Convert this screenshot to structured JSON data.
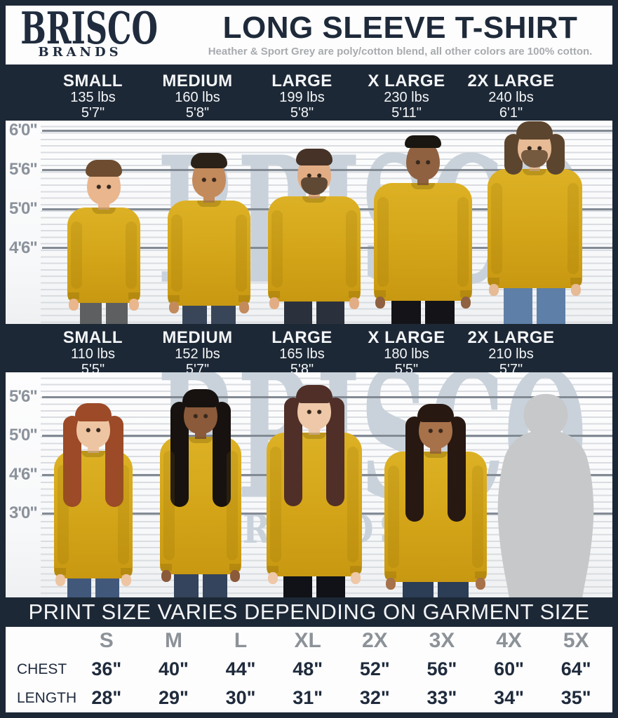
{
  "colors": {
    "navy": "#1d2836",
    "shirt_yellow": "#d3a417",
    "scale_grey": "#8b929b",
    "watermark_blue_grey": "#c9d2db",
    "table_header_grey": "#8c9298"
  },
  "header": {
    "brand_line1": "BRISCO",
    "brand_line2": "BRANDS",
    "title": "LONG SLEEVE T-SHIRT",
    "subtitle": "Heather & Sport Grey are poly/cotton blend, all other colors are 100% cotton."
  },
  "watermark": {
    "main": "BRISCO",
    "sub": "BRANDS"
  },
  "mens_row": {
    "sizes": [
      {
        "label": "SMALL",
        "weight": "135 lbs",
        "height": "5'7\""
      },
      {
        "label": "MEDIUM",
        "weight": "160 lbs",
        "height": "5'8\""
      },
      {
        "label": "LARGE",
        "weight": "199 lbs",
        "height": "5'8\""
      },
      {
        "label": "X LARGE",
        "weight": "230 lbs",
        "height": "5'11\""
      },
      {
        "label": "2X LARGE",
        "weight": "240 lbs",
        "height": "6'1\""
      }
    ],
    "scale_labels": [
      "6'0\"",
      "5'6\"",
      "5'0\"",
      "4'6\""
    ]
  },
  "womens_row": {
    "sizes": [
      {
        "label": "SMALL",
        "weight": "110 lbs",
        "height": "5'5\""
      },
      {
        "label": "MEDIUM",
        "weight": "152 lbs",
        "height": "5'7\""
      },
      {
        "label": "LARGE",
        "weight": "165 lbs",
        "height": "5'8\""
      },
      {
        "label": "X LARGE",
        "weight": "180 lbs",
        "height": "5'5\""
      },
      {
        "label": "2X LARGE",
        "weight": "210 lbs",
        "height": "5'7\""
      }
    ],
    "scale_labels": [
      "5'6\"",
      "5'0\"",
      "4'6\"",
      "3'0\""
    ]
  },
  "banner": {
    "text": "PRINT SIZE VARIES DEPENDING ON GARMENT SIZE"
  },
  "size_table": {
    "columns": [
      "S",
      "M",
      "L",
      "XL",
      "2X",
      "3X",
      "4X",
      "5X"
    ],
    "row_labels": [
      "CHEST",
      "LENGTH"
    ],
    "chest": [
      "36\"",
      "40\"",
      "44\"",
      "48\"",
      "52\"",
      "56\"",
      "60\"",
      "64\""
    ],
    "length": [
      "28\"",
      "29\"",
      "30\"",
      "31\"",
      "32\"",
      "33\"",
      "34\"",
      "35\""
    ]
  }
}
